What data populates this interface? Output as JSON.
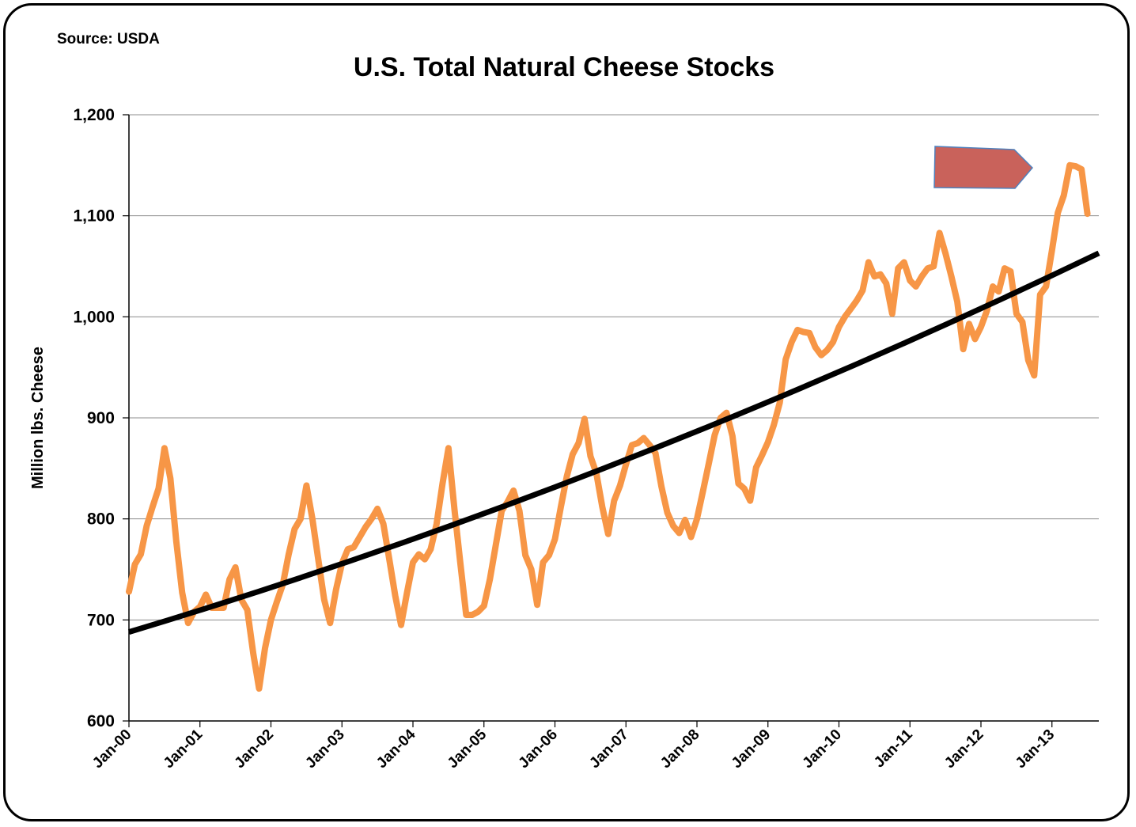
{
  "source": "Source: USDA",
  "chart_data": {
    "type": "line",
    "title": "U.S.  Total Natural Cheese Stocks",
    "xlabel": "",
    "ylabel": "Million lbs. Cheese",
    "ylim": [
      600,
      1200
    ],
    "yticks": [
      600,
      700,
      800,
      900,
      1000,
      1100,
      1200
    ],
    "ytick_labels": [
      "600",
      "700",
      "800",
      "900",
      "1,000",
      "1,100",
      "1,200"
    ],
    "xtick_labels": [
      "Jan-00",
      "Jan-01",
      "Jan-02",
      "Jan-03",
      "Jan-04",
      "Jan-05",
      "Jan-06",
      "Jan-07",
      "Jan-08",
      "Jan-09",
      "Jan-10",
      "Jan-11",
      "Jan-12",
      "Jan-13"
    ],
    "grid": "horizontal",
    "series": [
      {
        "color": "#F79646",
        "start": "Jan-00",
        "frequency": "monthly",
        "values": [
          728,
          755,
          765,
          793,
          812,
          830,
          870,
          840,
          778,
          727,
          697,
          708,
          713,
          725,
          712,
          712,
          712,
          740,
          752,
          720,
          710,
          667,
          632,
          672,
          700,
          718,
          735,
          765,
          790,
          800,
          833,
          800,
          760,
          720,
          697,
          730,
          756,
          770,
          772,
          782,
          792,
          800,
          810,
          795,
          760,
          724,
          695,
          727,
          757,
          765,
          760,
          770,
          795,
          835,
          870,
          810,
          757,
          705,
          705,
          708,
          714,
          740,
          774,
          808,
          817,
          828,
          808,
          764,
          750,
          715,
          757,
          764,
          780,
          812,
          842,
          864,
          875,
          899,
          862,
          845,
          812,
          785,
          818,
          833,
          854,
          873,
          875,
          880,
          873,
          865,
          832,
          806,
          793,
          786,
          799,
          782,
          800,
          827,
          855,
          883,
          900,
          905,
          882,
          835,
          830,
          818,
          851,
          863,
          876,
          893,
          915,
          958,
          975,
          987,
          985,
          984,
          970,
          962,
          967,
          975,
          990,
          1000,
          1008,
          1016,
          1026,
          1054,
          1040,
          1042,
          1033,
          1003,
          1048,
          1054,
          1036,
          1030,
          1040,
          1048,
          1050,
          1083,
          1063,
          1040,
          1015,
          968,
          993,
          978,
          990,
          1006,
          1030,
          1025,
          1048,
          1045,
          1003,
          995,
          957,
          942,
          1022,
          1030,
          1066,
          1103,
          1120,
          1150,
          1149,
          1146,
          1102
        ]
      },
      {
        "color": "#000000",
        "start_value": 688,
        "end_value": 1063
      }
    ],
    "annotations": [
      {
        "shape": "right-pointing arrow",
        "color": "#C9625B",
        "at": "Jul-11 to Nov-12, near 1,165"
      }
    ]
  }
}
